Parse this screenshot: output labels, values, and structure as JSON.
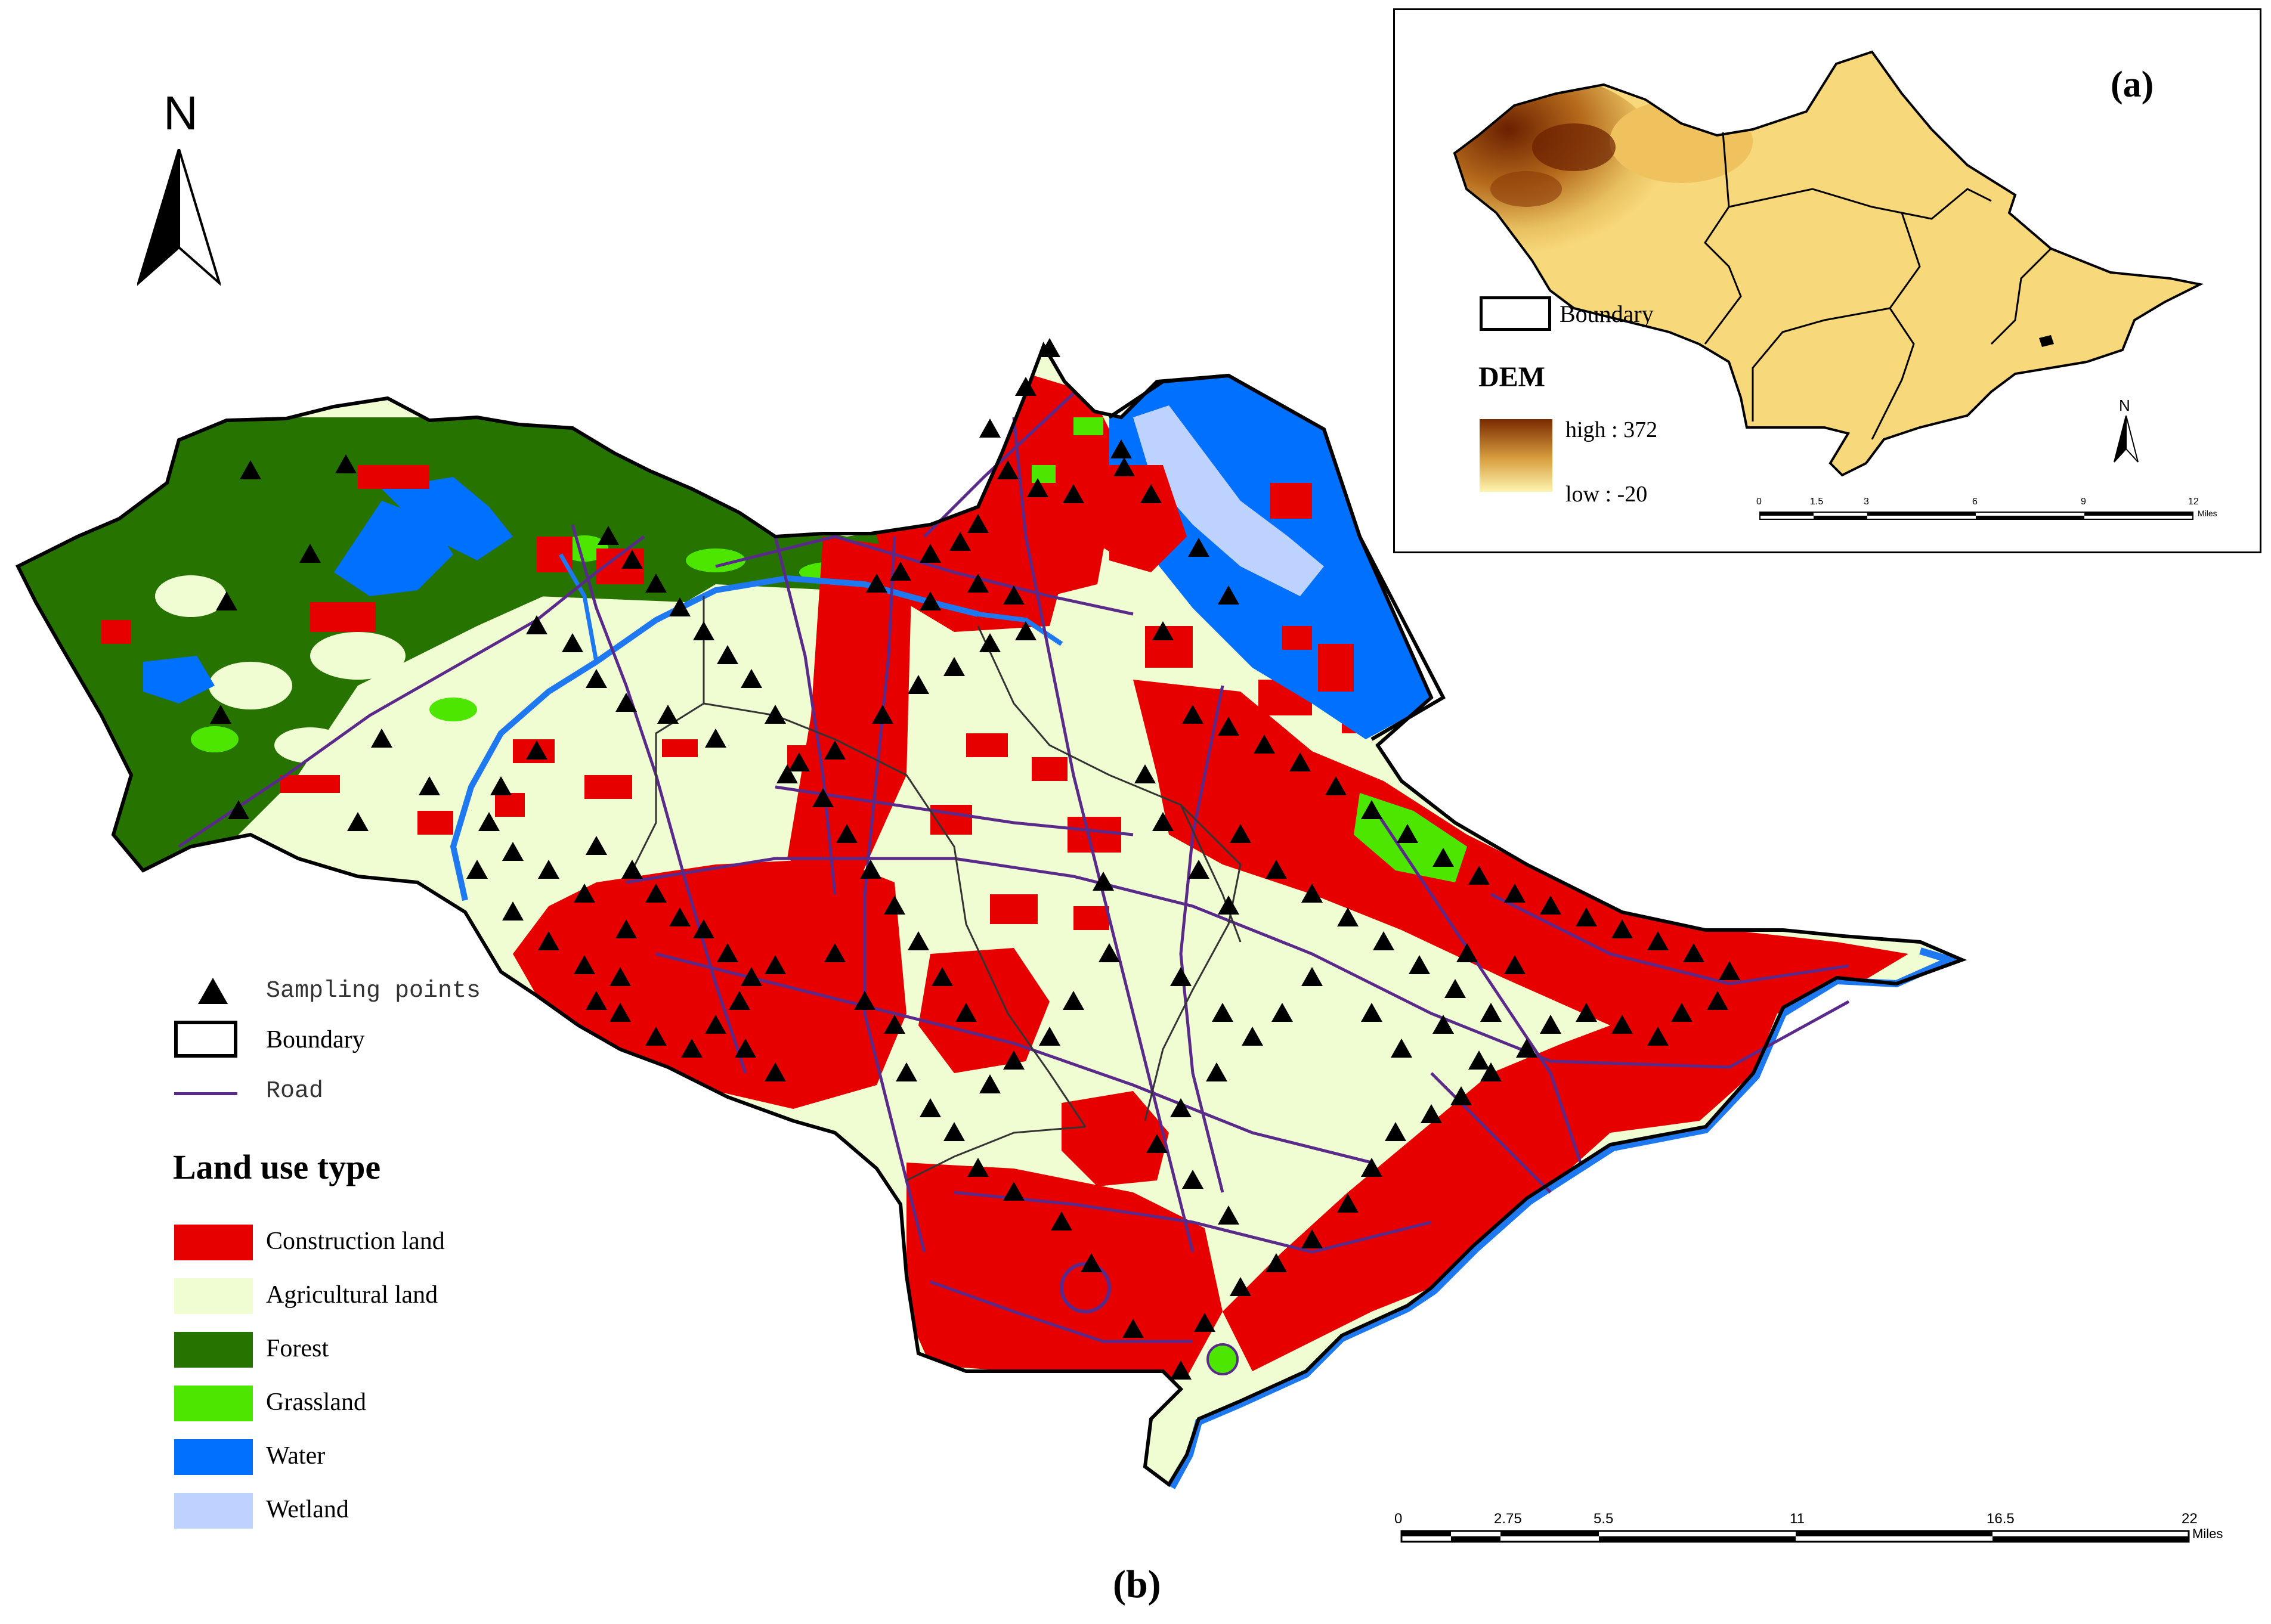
{
  "north_arrow": {
    "letter": "N"
  },
  "inset": {
    "panel_label": "(a)",
    "legend": {
      "boundary_label": "Boundary",
      "dem_title": "DEM",
      "high_label": "high : 372",
      "low_label": "low : -20"
    },
    "north_letter": "N",
    "scale": {
      "ticks": [
        "0",
        "1.5",
        "3",
        "6",
        "9",
        "12"
      ],
      "unit": "Miles"
    }
  },
  "main_map": {
    "panel_label": "(b)",
    "legend": {
      "sampling_points_label": "Sampling points",
      "boundary_label": "Boundary",
      "road_label": "Road",
      "land_use_title": "Land use type",
      "classes": [
        {
          "label": "Construction land",
          "color": "#e60000"
        },
        {
          "label": "Agricultural land",
          "color": "#f0fcd2"
        },
        {
          "label": "Forest",
          "color": "#267300"
        },
        {
          "label": "Grassland",
          "color": "#4ce600"
        },
        {
          "label": "Water",
          "color": "#0070ff"
        },
        {
          "label": "Wetland",
          "color": "#bed2ff"
        }
      ]
    },
    "scale": {
      "ticks": [
        "0",
        "2.75",
        "5.5",
        "11",
        "16.5",
        "22"
      ],
      "unit": "Miles"
    },
    "colors": {
      "road": "#5a2a8a",
      "boundary": "#000000",
      "river": "#1e78f0"
    }
  }
}
